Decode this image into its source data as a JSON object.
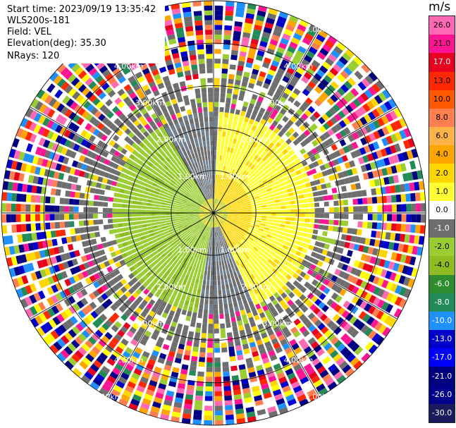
{
  "info": {
    "start_time": "Start time: 2023/09/19 13:35:42",
    "instrument": "WLS200s-181",
    "field": "Field: VEL",
    "elevation": "Elevation(deg): 35.30",
    "nrays": "NRays: 120"
  },
  "colorbar": {
    "unit": "m/s",
    "labels": [
      "26.0",
      "21.0",
      "17.0",
      "13.0",
      "10.0",
      "8.0",
      "6.0",
      "4.0",
      "2.0",
      "1.0",
      "0.0",
      "-1.0",
      "-2.0",
      "-4.0",
      "-6.0",
      "-8.0",
      "-10.0",
      "-13.0",
      "-17.0",
      "-21.0",
      "-26.0",
      "-30.0"
    ],
    "colors": [
      "#ff69b4",
      "#ff1493",
      "#e8001f",
      "#ff2800",
      "#ff5a00",
      "#ff7f50",
      "#ffb347",
      "#ffa500",
      "#ffd700",
      "#ffff33",
      "#ffffff",
      "#6e6e6e",
      "#9acd32",
      "#8fbc22",
      "#2e8b2e",
      "#228b57",
      "#1e90ff",
      "#0000cd",
      "#0000ff",
      "#000080",
      "#00008b",
      "#1a1a5e"
    ]
  },
  "chart_data": {
    "type": "heatmap",
    "title": "",
    "field": "VEL",
    "units": "m/s",
    "nrays": 120,
    "range_rings_km": [
      1.0,
      2.0,
      3.0,
      4.0,
      5.0
    ],
    "ring_labels": [
      {
        "text": "1.00km",
        "ring_km": 1.0,
        "angles_deg": [
          30,
          150,
          210,
          330
        ]
      },
      {
        "text": "2.00km",
        "ring_km": 2.0,
        "angles_deg": [
          30,
          150,
          210,
          330
        ]
      },
      {
        "text": "3.00km",
        "ring_km": 3.0,
        "angles_deg": [
          30,
          150,
          210,
          330
        ]
      },
      {
        "text": "4.00km",
        "ring_km": 4.0,
        "angles_deg": [
          30,
          150,
          210,
          330
        ]
      },
      {
        "text": "5.00km",
        "ring_km": 5.0,
        "angles_deg": [
          30,
          150,
          210,
          330
        ]
      }
    ],
    "max_range_km": 5.0,
    "value_range": [
      -30.0,
      26.0
    ]
  }
}
